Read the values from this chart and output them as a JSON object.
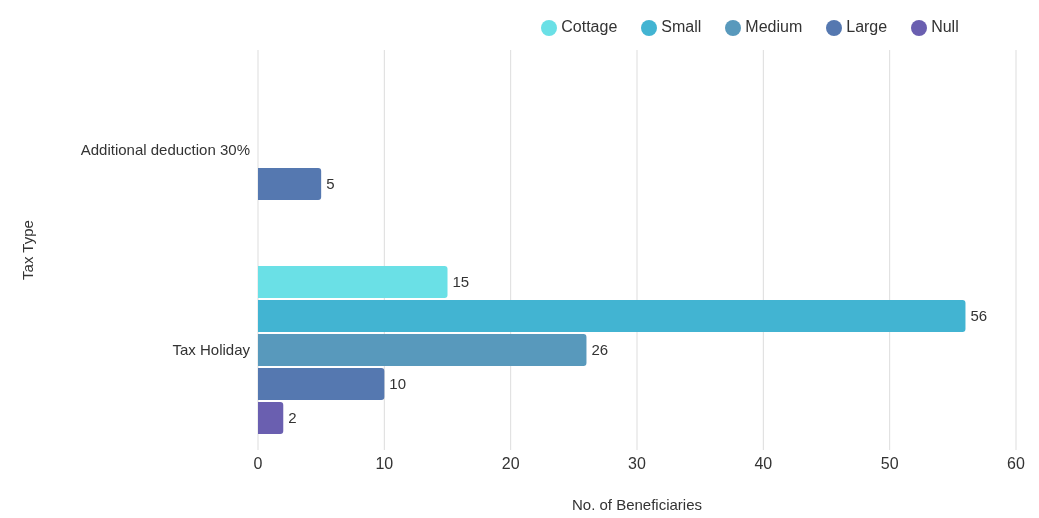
{
  "chart_data": {
    "type": "bar",
    "orientation": "horizontal",
    "xlabel": "No. of Beneficiaries",
    "ylabel": "Tax Type",
    "categories": [
      "Additional deduction 30%",
      "Tax Holiday"
    ],
    "series": [
      {
        "name": "Cottage",
        "color": "#6ae0e6",
        "values": [
          null,
          15
        ]
      },
      {
        "name": "Small",
        "color": "#42b4d2",
        "values": [
          null,
          56
        ]
      },
      {
        "name": "Medium",
        "color": "#5899bc",
        "values": [
          null,
          26
        ]
      },
      {
        "name": "Large",
        "color": "#5578b0",
        "values": [
          5,
          10
        ]
      },
      {
        "name": "Null",
        "color": "#6a5fb0",
        "values": [
          null,
          2
        ]
      }
    ],
    "xlim": [
      0,
      60
    ],
    "xticks": [
      0,
      10,
      20,
      30,
      40,
      50,
      60
    ],
    "grid": "x",
    "legend": "top",
    "data_labels": true
  }
}
